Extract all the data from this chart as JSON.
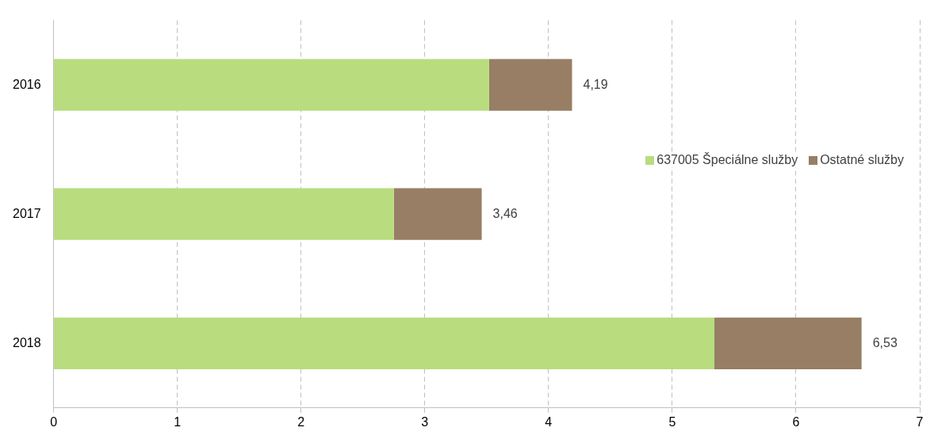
{
  "chart_data": {
    "type": "bar",
    "orientation": "horizontal",
    "stacked": true,
    "categories": [
      "2016",
      "2017",
      "2018"
    ],
    "series": [
      {
        "name": "637005 Špeciálne služby",
        "color": "#b8dc7e",
        "values": [
          3.52,
          2.75,
          5.34
        ]
      },
      {
        "name": "Ostatné služby",
        "color": "#977e65",
        "values": [
          0.67,
          0.71,
          1.19
        ]
      }
    ],
    "totals": [
      "4,19",
      "3,46",
      "6,53"
    ],
    "xlim": [
      0,
      7
    ],
    "xticks": [
      0,
      1,
      2,
      3,
      4,
      5,
      6,
      7
    ],
    "grid": "x",
    "legend": "right"
  }
}
